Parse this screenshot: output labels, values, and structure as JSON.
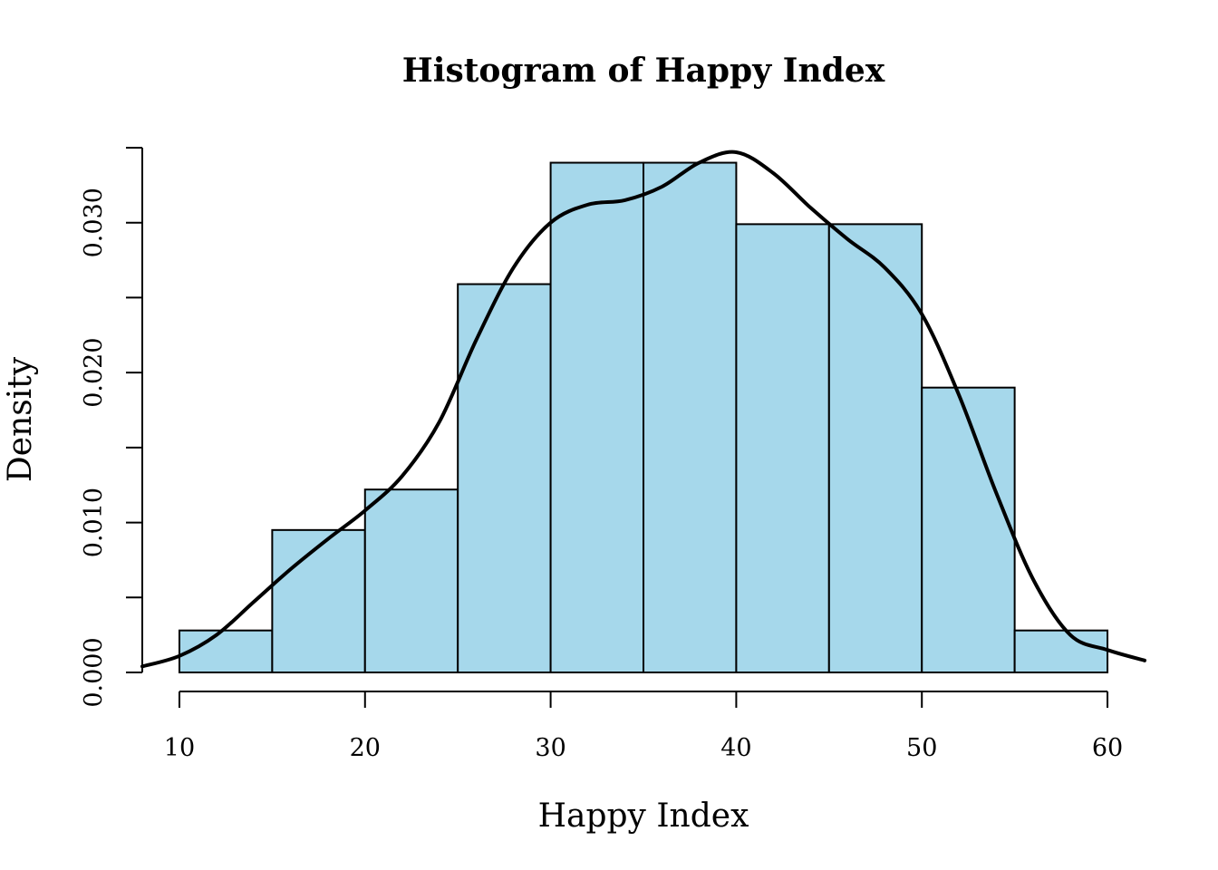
{
  "chart_data": {
    "type": "bar",
    "title": "Histogram of Happy Index",
    "xlabel": "Happy Index",
    "ylabel": "Density",
    "bar_color": "#a6d8eb",
    "line_color": "#000000",
    "xlim": [
      8,
      62
    ],
    "ylim": [
      0,
      0.035
    ],
    "x_ticks": [
      10,
      20,
      30,
      40,
      50,
      60
    ],
    "x_tick_labels": [
      "10",
      "20",
      "30",
      "40",
      "50",
      "60"
    ],
    "y_ticks": [
      0,
      0.005,
      0.01,
      0.015,
      0.02,
      0.025,
      0.03,
      0.035
    ],
    "y_tick_labels": [
      "0.000",
      "",
      "0.010",
      "",
      "0.020",
      "",
      "0.030",
      ""
    ],
    "grid": false,
    "legend": "none",
    "bins": [
      {
        "x0": 10,
        "x1": 15,
        "density": 0.0028
      },
      {
        "x0": 15,
        "x1": 20,
        "density": 0.0095
      },
      {
        "x0": 20,
        "x1": 25,
        "density": 0.0122
      },
      {
        "x0": 25,
        "x1": 30,
        "density": 0.0259
      },
      {
        "x0": 30,
        "x1": 35,
        "density": 0.034
      },
      {
        "x0": 35,
        "x1": 40,
        "density": 0.034
      },
      {
        "x0": 40,
        "x1": 45,
        "density": 0.0299
      },
      {
        "x0": 45,
        "x1": 50,
        "density": 0.0299
      },
      {
        "x0": 50,
        "x1": 55,
        "density": 0.019
      },
      {
        "x0": 55,
        "x1": 60,
        "density": 0.0028
      }
    ],
    "density_curve": {
      "x": [
        8,
        10,
        12,
        14,
        16,
        18,
        20,
        22,
        24,
        26,
        28,
        30,
        32,
        34,
        36,
        38,
        40,
        42,
        44,
        46,
        48,
        50,
        52,
        54,
        56,
        58,
        60,
        62
      ],
      "y": [
        0.0004,
        0.0011,
        0.0025,
        0.0047,
        0.0069,
        0.0089,
        0.0108,
        0.0131,
        0.0167,
        0.0222,
        0.027,
        0.03,
        0.0312,
        0.0315,
        0.0324,
        0.034,
        0.0347,
        0.0333,
        0.031,
        0.0289,
        0.027,
        0.0239,
        0.0185,
        0.012,
        0.0062,
        0.0025,
        0.0015,
        0.0008
      ]
    }
  }
}
